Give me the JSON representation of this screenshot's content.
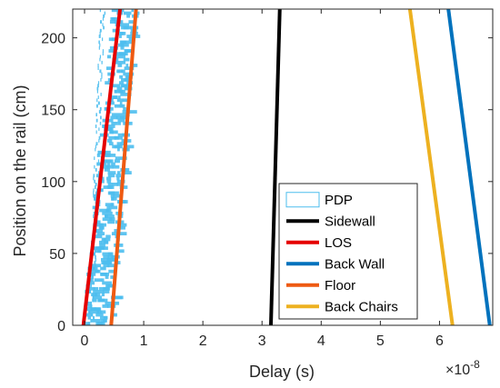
{
  "chart_data": {
    "type": "line",
    "xlabel": "Delay (s)",
    "ylabel": "Position on the rail (cm)",
    "x_exponent_label": "×10",
    "x_exponent_power": "-8",
    "xlim": [
      -0.2,
      6.9
    ],
    "ylim": [
      0,
      220
    ],
    "xticks": [
      0,
      1,
      2,
      3,
      4,
      5,
      6
    ],
    "yticks": [
      0,
      50,
      100,
      150,
      200
    ],
    "xtick_labels": [
      "0",
      "1",
      "2",
      "3",
      "4",
      "5",
      "6"
    ],
    "ytick_labels": [
      "0",
      "50",
      "100",
      "150",
      "200"
    ],
    "grid": false,
    "legend_position": "bottom-right",
    "legend": [
      {
        "label": "PDP",
        "color": "#4DBEEE",
        "style": "patch"
      },
      {
        "label": "Sidewall",
        "color": "#000000",
        "style": "line"
      },
      {
        "label": "LOS",
        "color": "#E50000",
        "style": "line"
      },
      {
        "label": "Back Wall",
        "color": "#0072BD",
        "style": "line"
      },
      {
        "label": "Floor",
        "color": "#EE5A12",
        "style": "line"
      },
      {
        "label": "Back Chairs",
        "color": "#EDB120",
        "style": "line"
      }
    ],
    "series": [
      {
        "name": "Sidewall",
        "color": "#000000",
        "x": [
          3.15,
          3.3
        ],
        "y": [
          0,
          220
        ]
      },
      {
        "name": "LOS",
        "color": "#E50000",
        "x": [
          -0.02,
          0.6
        ],
        "y": [
          0,
          220
        ]
      },
      {
        "name": "Back Wall",
        "color": "#0072BD",
        "x": [
          6.85,
          6.15
        ],
        "y": [
          0,
          220
        ]
      },
      {
        "name": "Floor",
        "color": "#EE5A12",
        "x": [
          0.45,
          0.87
        ],
        "y": [
          0,
          220
        ]
      },
      {
        "name": "Back Chairs",
        "color": "#EDB120",
        "x": [
          6.22,
          5.5
        ],
        "y": [
          0,
          220
        ]
      }
    ],
    "pdp": {
      "name": "PDP",
      "color": "#4DBEEE",
      "bands": [
        {
          "x_start": [
            -0.05,
            0.45
          ],
          "x_end": [
            0.55,
            0.9
          ]
        },
        {
          "x_start": [
            0.05,
            0.25
          ],
          "x_end": [
            0.15,
            0.35
          ]
        }
      ],
      "y_range": [
        0,
        220
      ]
    }
  }
}
